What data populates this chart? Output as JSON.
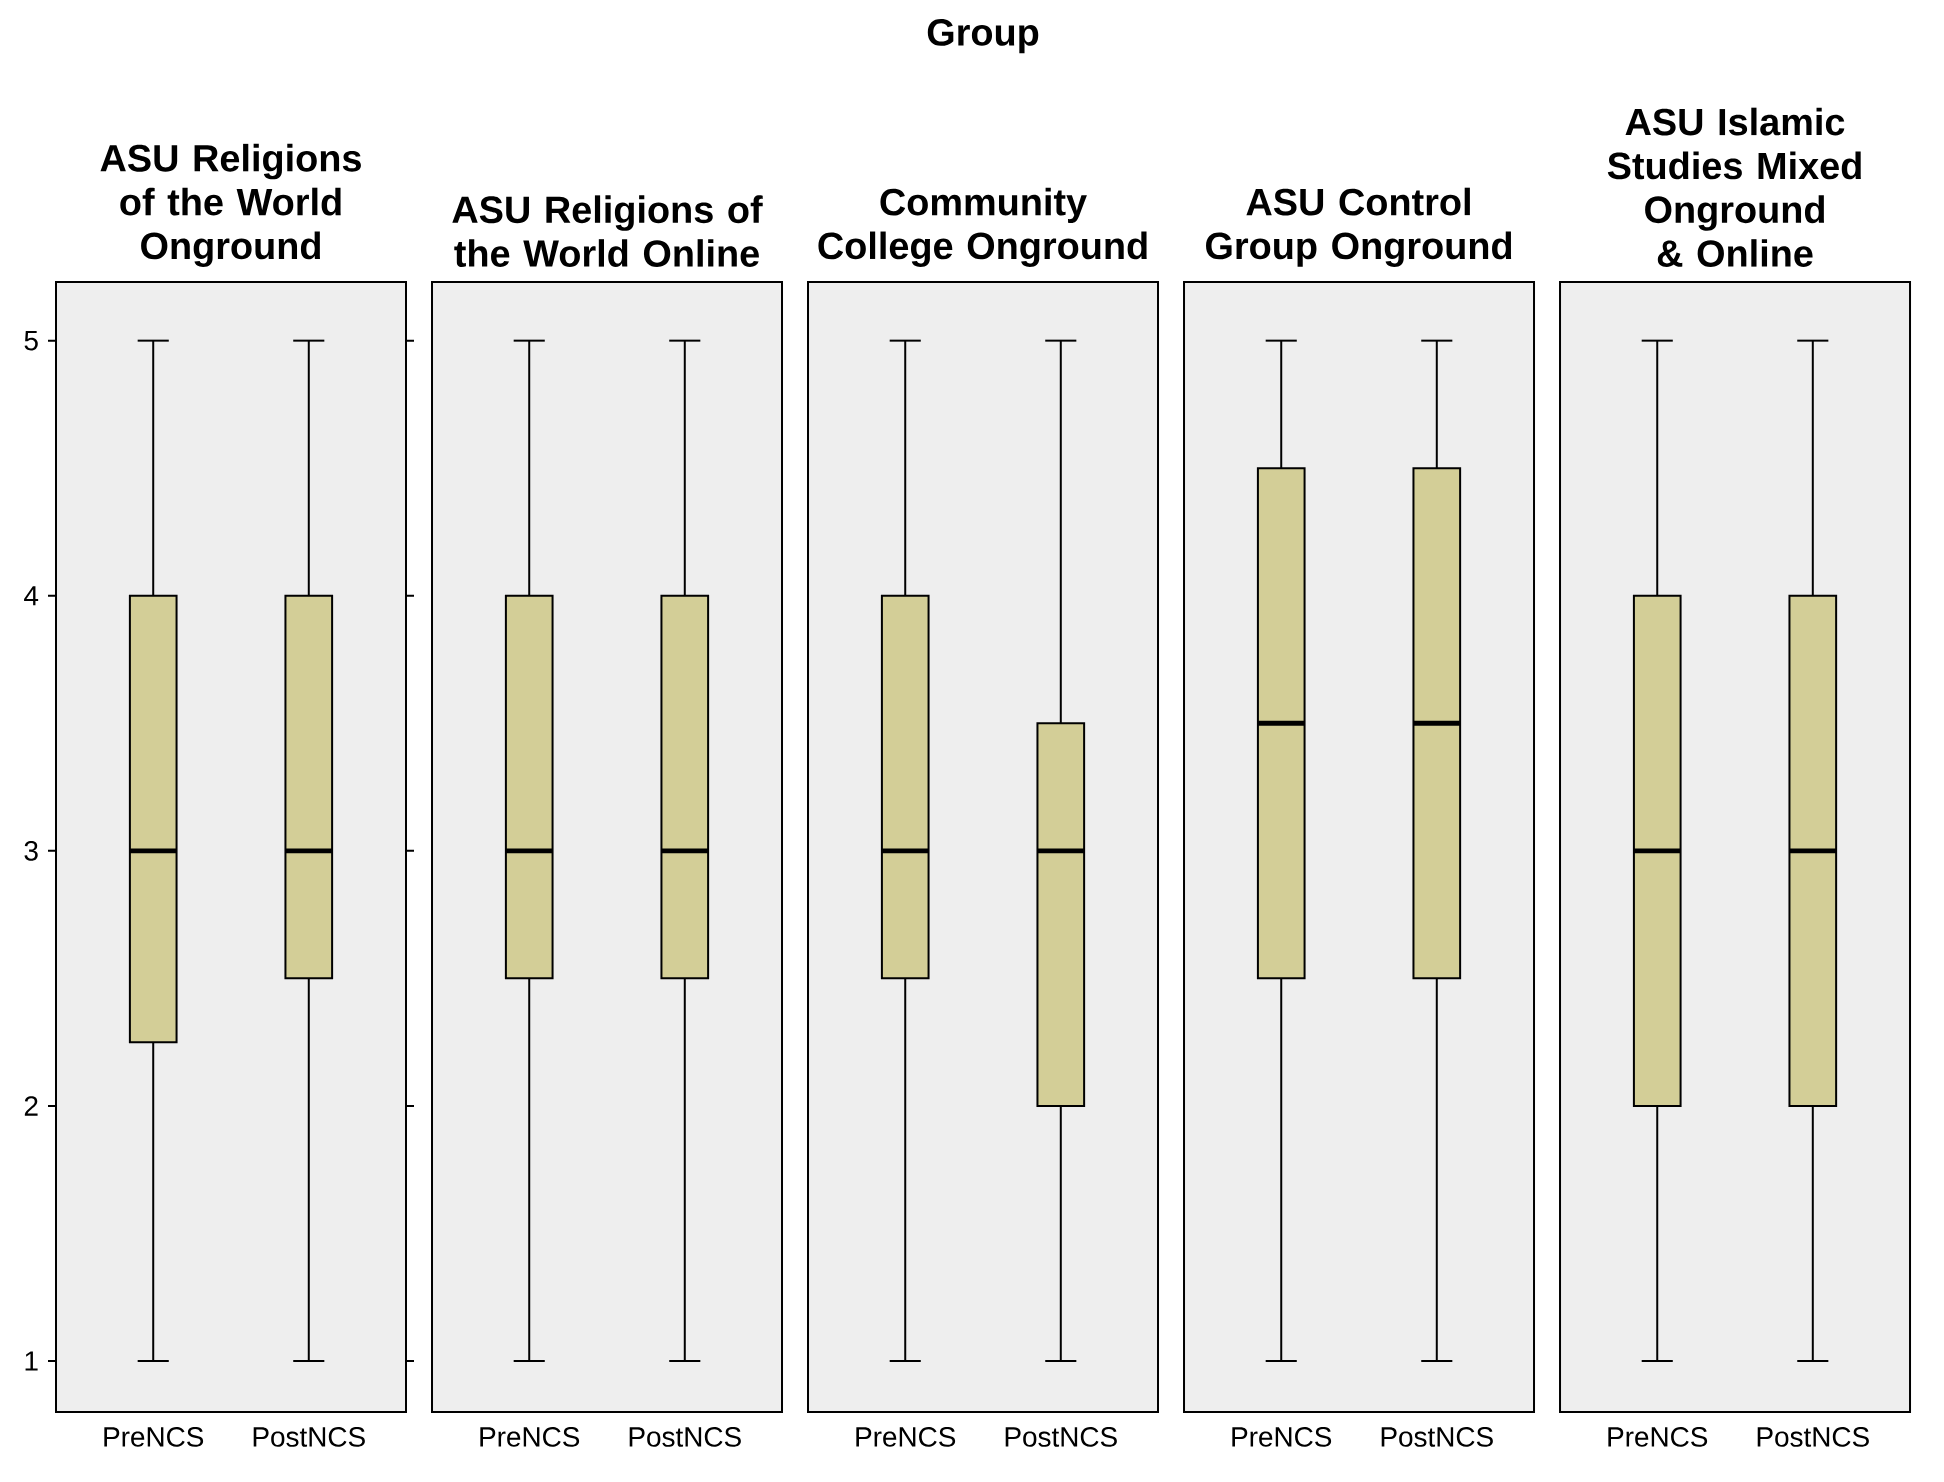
{
  "chart_data": [
    {
      "type": "box",
      "title": "ASU Religions of the World Onground",
      "annotations": [
        "Group"
      ],
      "categories": [
        "PreNCS",
        "PostNCS"
      ],
      "color": "#d3ce97",
      "ylim": [
        0.8,
        5.23
      ],
      "yticks": [
        1,
        2,
        3,
        4,
        5
      ],
      "boxes": [
        {
          "low": 1,
          "q1": 2.25,
          "median": 3,
          "q3": 4,
          "high": 5
        },
        {
          "low": 1,
          "q1": 2.5,
          "median": 3,
          "q3": 4,
          "high": 5
        }
      ]
    },
    {
      "type": "box",
      "title": "ASU Religions of the World Online",
      "categories": [
        "PreNCS",
        "PostNCS"
      ],
      "color": "#d3ce97",
      "ylim": [
        0.8,
        5.23
      ],
      "yticks": [
        1,
        2,
        3,
        4,
        5
      ],
      "tick_labels": "x",
      "boxes": [
        {
          "low": 1,
          "q1": 2.5,
          "median": 3,
          "q3": 4,
          "high": 5
        },
        {
          "low": 1,
          "q1": 2.5,
          "median": 3,
          "q3": 4,
          "high": 5
        }
      ]
    },
    {
      "type": "box",
      "title": "Community College Onground",
      "categories": [
        "PreNCS",
        "PostNCS"
      ],
      "color": "#d3ce97",
      "ylim": [
        0.8,
        5.23
      ],
      "yticks": [
        1,
        2,
        3,
        4,
        5
      ],
      "tick_labels": "x",
      "boxes": [
        {
          "low": 1,
          "q1": 2.5,
          "median": 3,
          "q3": 4,
          "high": 5
        },
        {
          "low": 1,
          "q1": 2,
          "median": 3,
          "q3": 3.5,
          "high": 5
        }
      ]
    },
    {
      "type": "box",
      "title": "ASU Control Group Onground",
      "categories": [
        "PreNCS",
        "PostNCS"
      ],
      "color": "#d3ce97",
      "ylim": [
        0.8,
        5.23
      ],
      "yticks": [
        1,
        2,
        3,
        4,
        5
      ],
      "tick_labels": "x",
      "boxes": [
        {
          "low": 1,
          "q1": 2.5,
          "median": 3.5,
          "q3": 4.5,
          "high": 5
        },
        {
          "low": 1,
          "q1": 2.5,
          "median": 3.5,
          "q3": 4.5,
          "high": 5
        }
      ]
    },
    {
      "type": "box",
      "title": "ASU Islamic Studies Mixed Onground & Online",
      "categories": [
        "PreNCS",
        "PostNCS"
      ],
      "color": "#d3ce97",
      "ylim": [
        0.8,
        5.23
      ],
      "yticks": [
        1,
        2,
        3,
        4,
        5
      ],
      "tick_labels": "x",
      "boxes": [
        {
          "low": 1,
          "q1": 2,
          "median": 3,
          "q3": 4,
          "high": 5
        },
        {
          "low": 1,
          "q1": 2,
          "median": 3,
          "q3": 4,
          "high": 5
        }
      ]
    }
  ]
}
